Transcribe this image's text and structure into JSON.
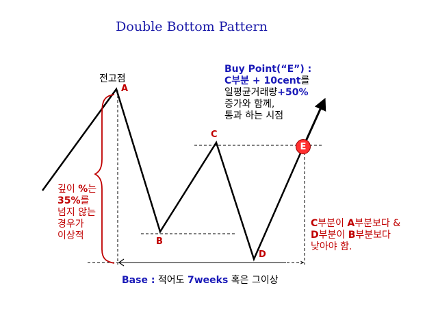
{
  "title": "Double Bottom Pattern",
  "points": {
    "peak_label": "전고점",
    "a": "A",
    "b": "B",
    "c": "C",
    "d": "D",
    "e": "E"
  },
  "buy_point": {
    "line1": "Buy Point(“E”) :",
    "line2_bold": "C부분 + 10cent",
    "line2_rest": "를",
    "line3_rest": "일평균거래량",
    "line3_bold": "+50%",
    "line4": "증가와 함께,",
    "line5": "통과 하는 시점"
  },
  "depth_note": {
    "line1_pre": "깊이 ",
    "line1_bold": "%",
    "line1_post": "는",
    "line2_bold": "35%",
    "line2_post": "를",
    "line3": "넘지 않는",
    "line4": "경우가",
    "line5": "이상적"
  },
  "condition_note": {
    "line1_a": "C",
    "line1_b": "부분이 ",
    "line1_c": "A",
    "line1_d": "부분보다 &",
    "line2_a": "D",
    "line2_b": "부분이 ",
    "line2_c": "B",
    "line2_d": "부분보다",
    "line3": "낮아야 함."
  },
  "base_note": {
    "base_bold": "Base :",
    "mid": " 적어도 ",
    "weeks_bold": "7weeks",
    "post": " 혹은 그이상"
  },
  "colors": {
    "title": "#1a1aa8",
    "accent_blue": "#1a1ab8",
    "accent_red": "#c00000",
    "point_e_fill": "#ff3030"
  }
}
